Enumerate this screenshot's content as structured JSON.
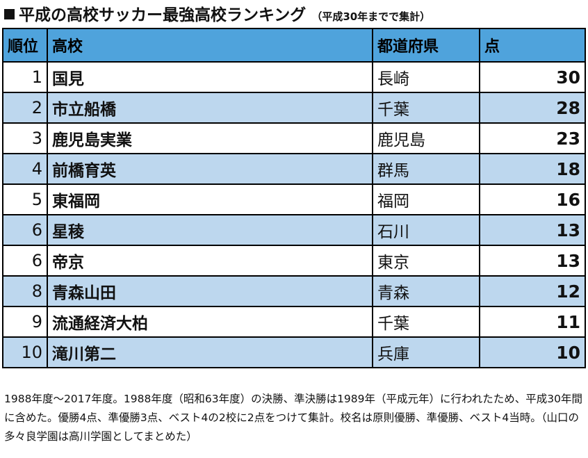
{
  "title": {
    "main": "平成の高校サッカー最強高校ランキング",
    "note": "（平成30年までで集計）"
  },
  "table": {
    "headers": {
      "rank": "順位",
      "school": "高校",
      "prefecture": "都道府県",
      "points": "点"
    },
    "rows": [
      {
        "rank": "1",
        "school": "国見",
        "prefecture": "長崎",
        "points": "30"
      },
      {
        "rank": "2",
        "school": "市立船橋",
        "prefecture": "千葉",
        "points": "28"
      },
      {
        "rank": "3",
        "school": "鹿児島実業",
        "prefecture": "鹿児島",
        "points": "23"
      },
      {
        "rank": "4",
        "school": "前橋育英",
        "prefecture": "群馬",
        "points": "18"
      },
      {
        "rank": "5",
        "school": "東福岡",
        "prefecture": "福岡",
        "points": "16"
      },
      {
        "rank": "6",
        "school": "星稜",
        "prefecture": "石川",
        "points": "13"
      },
      {
        "rank": "6",
        "school": "帝京",
        "prefecture": "東京",
        "points": "13"
      },
      {
        "rank": "8",
        "school": "青森山田",
        "prefecture": "青森",
        "points": "12"
      },
      {
        "rank": "9",
        "school": "流通経済大柏",
        "prefecture": "千葉",
        "points": "11"
      },
      {
        "rank": "10",
        "school": "滝川第二",
        "prefecture": "兵庫",
        "points": "10"
      }
    ]
  },
  "footnote": "1988年度～2017年度。1988年度（昭和63年度）の決勝、準決勝は1989年（平成元年）に行われたため、平成30年間に含めた。優勝4点、準優勝3点、ベスト4の2校に2点をつけて集計。校名は原則優勝、準優勝、ベスト4当時。（山口の多々良学園は高川学園としてまとめた）",
  "colors": {
    "header_bg": "#4fa3dc",
    "row_alt_bg": "#bdd7ee",
    "row_bg": "#ffffff"
  }
}
